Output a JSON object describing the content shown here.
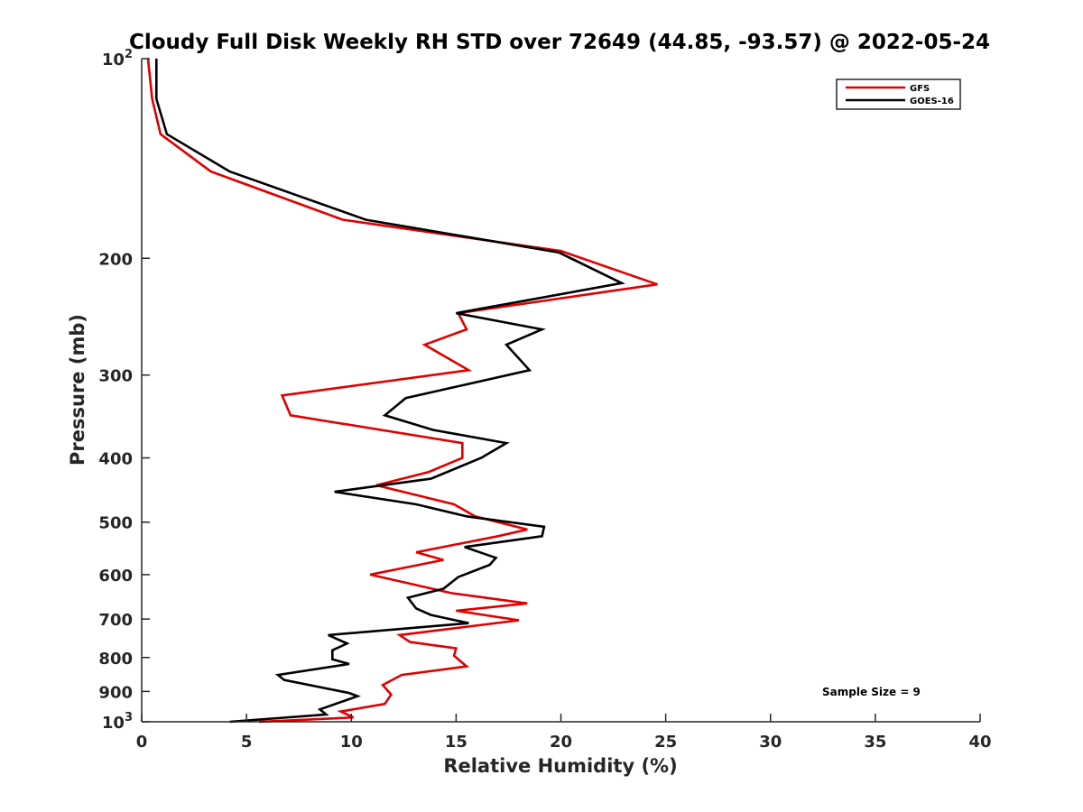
{
  "chart_data": {
    "type": "line",
    "title": "Cloudy Full Disk Weekly RH STD over 72649 (44.85, -93.57) @ 2022-05-24",
    "xlabel": "Relative Humidity (%)",
    "ylabel": "Pressure (mb)",
    "xlim": [
      0,
      40
    ],
    "ylim": [
      100,
      1000
    ],
    "y_scale": "log",
    "y_inverted": true,
    "x_ticks": [
      "0",
      "5",
      "10",
      "15",
      "20",
      "25",
      "30",
      "35",
      "40"
    ],
    "y_ticks": [
      {
        "value": 100,
        "base": "10",
        "exp": "2"
      },
      {
        "value": 200,
        "label": "200"
      },
      {
        "value": 300,
        "label": "300"
      },
      {
        "value": 400,
        "label": "400"
      },
      {
        "value": 500,
        "label": "500"
      },
      {
        "value": 600,
        "label": "600"
      },
      {
        "value": 700,
        "label": "700"
      },
      {
        "value": 800,
        "label": "800"
      },
      {
        "value": 900,
        "label": "900"
      },
      {
        "value": 1000,
        "base": "10",
        "exp": "3"
      }
    ],
    "legend_position": "top-right",
    "grid": false,
    "annotation": "Sample Size = 9",
    "series": [
      {
        "name": "GFS",
        "color": "#e00000",
        "points": [
          [
            0.3,
            100
          ],
          [
            0.5,
            115
          ],
          [
            0.9,
            130
          ],
          [
            3.3,
            148
          ],
          [
            9.6,
            175
          ],
          [
            20.0,
            195
          ],
          [
            24.6,
            219
          ],
          [
            15.1,
            242
          ],
          [
            15.5,
            256
          ],
          [
            13.5,
            270
          ],
          [
            15.6,
            295
          ],
          [
            6.7,
            322
          ],
          [
            7.1,
            345
          ],
          [
            15.3,
            380
          ],
          [
            15.3,
            400
          ],
          [
            13.7,
            420
          ],
          [
            11.2,
            440
          ],
          [
            14.9,
            470
          ],
          [
            15.9,
            490
          ],
          [
            18.4,
            513
          ],
          [
            17.0,
            525
          ],
          [
            13.1,
            555
          ],
          [
            14.4,
            570
          ],
          [
            10.9,
            600
          ],
          [
            14.8,
            640
          ],
          [
            18.4,
            663
          ],
          [
            15.0,
            680
          ],
          [
            18.0,
            703
          ],
          [
            12.3,
            740
          ],
          [
            12.8,
            758
          ],
          [
            15.0,
            775
          ],
          [
            14.9,
            795
          ],
          [
            15.5,
            825
          ],
          [
            12.4,
            850
          ],
          [
            11.5,
            880
          ],
          [
            11.9,
            910
          ],
          [
            11.6,
            940
          ],
          [
            9.5,
            965
          ],
          [
            10.1,
            985
          ],
          [
            5.6,
            1000
          ]
        ]
      },
      {
        "name": "GOES-16",
        "color": "#000000",
        "points": [
          [
            0.7,
            100
          ],
          [
            0.7,
            115
          ],
          [
            1.2,
            130
          ],
          [
            4.2,
            148
          ],
          [
            10.7,
            175
          ],
          [
            19.9,
            196
          ],
          [
            22.9,
            218
          ],
          [
            15.0,
            242
          ],
          [
            19.1,
            256
          ],
          [
            17.4,
            270
          ],
          [
            18.5,
            295
          ],
          [
            12.6,
            325
          ],
          [
            11.6,
            345
          ],
          [
            13.9,
            363
          ],
          [
            17.4,
            380
          ],
          [
            16.2,
            400
          ],
          [
            13.8,
            430
          ],
          [
            9.2,
            450
          ],
          [
            13.1,
            470
          ],
          [
            15.5,
            490
          ],
          [
            19.2,
            508
          ],
          [
            19.1,
            525
          ],
          [
            15.4,
            545
          ],
          [
            16.9,
            566
          ],
          [
            16.6,
            580
          ],
          [
            15.1,
            605
          ],
          [
            14.4,
            630
          ],
          [
            12.7,
            650
          ],
          [
            13.1,
            675
          ],
          [
            13.8,
            690
          ],
          [
            15.6,
            710
          ],
          [
            8.9,
            740
          ],
          [
            9.8,
            762
          ],
          [
            9.1,
            780
          ],
          [
            9.1,
            805
          ],
          [
            9.9,
            818
          ],
          [
            6.5,
            850
          ],
          [
            6.8,
            865
          ],
          [
            9.9,
            905
          ],
          [
            10.3,
            915
          ],
          [
            8.5,
            958
          ],
          [
            8.8,
            975
          ],
          [
            4.2,
            1000
          ]
        ]
      }
    ]
  }
}
